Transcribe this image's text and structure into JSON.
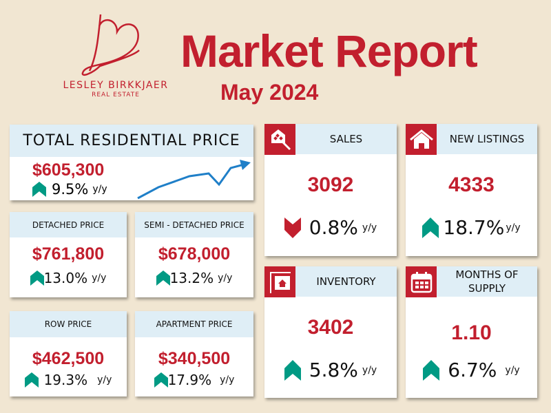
{
  "brand": {
    "name": "LESLEY BIRKKJAER",
    "sub": "REAL ESTATE"
  },
  "header": {
    "title": "Market Report",
    "date": "May 2024"
  },
  "colors": {
    "background": "#f1e6d2",
    "accent": "#c21f2e",
    "header": "#dfeef6",
    "up": "#009a84",
    "down": "#c21f2e",
    "sparkline": "#1f7fc8"
  },
  "total": {
    "label": "TOTAL RESIDENTIAL PRICE",
    "value": "$605,300",
    "change": "9.5%",
    "unit": "y/y",
    "direction": "up"
  },
  "detached": {
    "label": "DETACHED PRICE",
    "value": "$761,800",
    "change": "13.0%",
    "unit": "y/y",
    "direction": "up"
  },
  "semi": {
    "label": "SEMI - DETACHED PRICE",
    "value": "$678,000",
    "change": "13.2%",
    "unit": "y/y",
    "direction": "up"
  },
  "row": {
    "label": "ROW PRICE",
    "value": "$462,500",
    "change": "19.3%",
    "unit": "y/y",
    "direction": "up"
  },
  "apartment": {
    "label": "APARTMENT PRICE",
    "value": "$340,500",
    "change": "17.9%",
    "unit": "y/y",
    "direction": "up"
  },
  "sales": {
    "label": "SALES",
    "value": "3092",
    "change": "0.8%",
    "unit": "y/y",
    "direction": "down",
    "icon": "house-key-icon"
  },
  "new_listings": {
    "label": "NEW LISTINGS",
    "value": "4333",
    "change": "18.7%",
    "unit": "y/y",
    "direction": "up",
    "icon": "house-icon"
  },
  "inventory": {
    "label": "INVENTORY",
    "value": "3402",
    "change": "5.8%",
    "unit": "y/y",
    "direction": "up",
    "icon": "house-sign-icon"
  },
  "months_supply": {
    "label_line1": "MONTHS OF",
    "label_line2": "SUPPLY",
    "value": "1.10",
    "change": "6.7%",
    "unit": "y/y",
    "direction": "up",
    "icon": "calendar-icon"
  }
}
